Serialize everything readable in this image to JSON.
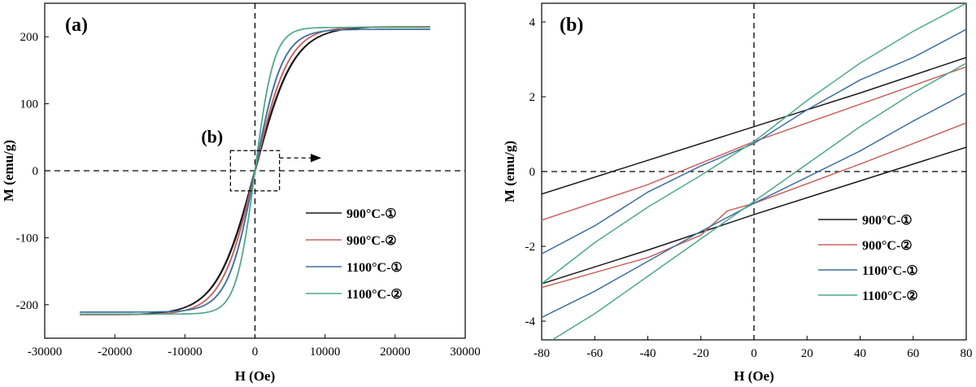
{
  "chart_data": [
    {
      "type": "line",
      "panel_label": "(a)",
      "xlabel": "H (Oe)",
      "ylabel": "M (emu/g)",
      "xlim": [
        -30000,
        30000
      ],
      "ylim": [
        -250,
        250
      ],
      "xticks": [
        -30000,
        -20000,
        -10000,
        0,
        10000,
        20000,
        30000
      ],
      "xtick_labels": [
        "-30000",
        "-20000",
        "-10000",
        "0",
        "10000",
        "20000",
        "30000"
      ],
      "yticks": [
        -200,
        -100,
        0,
        100,
        200
      ],
      "ytick_labels": [
        "-200",
        "-100",
        "0",
        "100",
        "200"
      ],
      "legend_position": "lower-right",
      "inset_annotation": {
        "label": "(b)",
        "box_x": [
          -3500,
          3500
        ],
        "box_y": [
          -30,
          30
        ]
      },
      "series": [
        {
          "name": "900°C-①",
          "color": "#1a1a1a",
          "Ms": 215,
          "Hscale": 5500,
          "Hc": 55
        },
        {
          "name": "900°C-②",
          "color": "#c9625f",
          "Ms": 215,
          "Hscale": 4800,
          "Hc": 30
        },
        {
          "name": "1100°C-①",
          "color": "#3d6fa0",
          "Ms": 211,
          "Hscale": 3900,
          "Hc": 25
        },
        {
          "name": "1100°C-②",
          "color": "#4ea88a",
          "Ms": 214,
          "Hscale": 2700,
          "Hc": 17
        }
      ]
    },
    {
      "type": "line",
      "panel_label": "(b)",
      "xlabel": "H (Oe)",
      "ylabel": "M (emu/g)",
      "xlim": [
        -80,
        80
      ],
      "ylim": [
        -4.5,
        4.5
      ],
      "xticks": [
        -80,
        -60,
        -40,
        -20,
        0,
        20,
        40,
        60,
        80
      ],
      "xtick_labels": [
        "-80",
        "-60",
        "-40",
        "-20",
        "0",
        "20",
        "40",
        "60",
        "80"
      ],
      "yticks": [
        -4,
        -2,
        0,
        2,
        4
      ],
      "ytick_labels": [
        "-4",
        "-2",
        "0",
        "2",
        "4"
      ],
      "legend_position": "lower-right",
      "series": [
        {
          "name": "900°C-①",
          "color": "#1a1a1a",
          "upper": {
            "x": [
              -80,
              -40,
              0,
              40,
              80
            ],
            "y": [
              -0.6,
              0.3,
              1.2,
              2.1,
              3.05
            ]
          },
          "lower": {
            "x": [
              -80,
              -40,
              0,
              40,
              80
            ],
            "y": [
              -3.0,
              -2.1,
              -1.15,
              -0.25,
              0.65
            ]
          }
        },
        {
          "name": "900°C-②",
          "color": "#c9625f",
          "upper": {
            "x": [
              -80,
              -40,
              0,
              40,
              80
            ],
            "y": [
              -1.3,
              -0.35,
              0.8,
              1.8,
              2.8
            ]
          },
          "lower": {
            "x": [
              -80,
              -40,
              -20,
              -10,
              0,
              40,
              80
            ],
            "y": [
              -3.1,
              -2.3,
              -1.7,
              -1.05,
              -0.85,
              0.2,
              1.3
            ]
          }
        },
        {
          "name": "1100°C-①",
          "color": "#3d6fa0",
          "upper": {
            "x": [
              -80,
              -60,
              -40,
              -20,
              0,
              20,
              40,
              60,
              80
            ],
            "y": [
              -2.2,
              -1.45,
              -0.55,
              0.15,
              0.75,
              1.65,
              2.45,
              3.05,
              3.8
            ]
          },
          "lower": {
            "x": [
              -80,
              -60,
              -40,
              -20,
              0,
              20,
              40,
              60,
              80
            ],
            "y": [
              -3.9,
              -3.2,
              -2.4,
              -1.6,
              -0.85,
              -0.15,
              0.55,
              1.35,
              2.1
            ]
          }
        },
        {
          "name": "1100°C-②",
          "color": "#4ea88a",
          "upper": {
            "x": [
              -80,
              -60,
              -40,
              -20,
              0,
              20,
              40,
              60,
              80
            ],
            "y": [
              -3.0,
              -1.9,
              -0.95,
              -0.1,
              0.8,
              1.9,
              2.9,
              3.75,
              4.5
            ]
          },
          "lower": {
            "x": [
              -76,
              -60,
              -40,
              -20,
              0,
              20,
              40,
              60,
              80
            ],
            "y": [
              -4.5,
              -3.8,
              -2.8,
              -1.8,
              -0.8,
              0.2,
              1.2,
              2.1,
              2.9
            ]
          }
        }
      ]
    }
  ]
}
